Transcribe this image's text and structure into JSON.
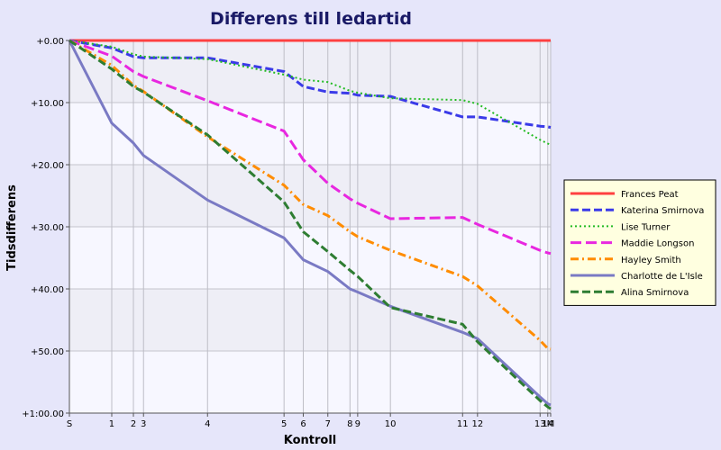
{
  "chart_data": {
    "type": "line",
    "title": "Differens till ledartid",
    "xlabel": "Kontroll",
    "ylabel": "Tidsdifferens",
    "ylim": [
      0,
      60
    ],
    "y_ticks": [
      {
        "value": 0,
        "label": "+0.00"
      },
      {
        "value": 10,
        "label": "+10.00"
      },
      {
        "value": 20,
        "label": "+20.00"
      },
      {
        "value": 30,
        "label": "+30.00"
      },
      {
        "value": 40,
        "label": "+40.00"
      },
      {
        "value": 50,
        "label": "+50.00"
      },
      {
        "value": 60,
        "label": "+1:00.00"
      }
    ],
    "x_range": [
      0,
      100
    ],
    "x_ticks": [
      {
        "label": "S",
        "x": 0
      },
      {
        "label": "1",
        "x": 8.8
      },
      {
        "label": "2",
        "x": 13.3
      },
      {
        "label": "3",
        "x": 15.4
      },
      {
        "label": "4",
        "x": 28.7
      },
      {
        "label": "5",
        "x": 44.6
      },
      {
        "label": "6",
        "x": 48.6
      },
      {
        "label": "7",
        "x": 53.7
      },
      {
        "label": "8",
        "x": 58.3
      },
      {
        "label": "9",
        "x": 59.9
      },
      {
        "label": "10",
        "x": 66.7
      },
      {
        "label": "11",
        "x": 81.7
      },
      {
        "label": "12",
        "x": 84.8
      },
      {
        "label": "13",
        "x": 97.8
      },
      {
        "label": "14",
        "x": 99.4
      },
      {
        "label": "M",
        "x": 100
      }
    ],
    "grid": true,
    "legend_position": "right",
    "series": [
      {
        "name": "Frances Peat",
        "color": "#ff4040",
        "style": "solid",
        "points": [
          [
            0,
            0
          ],
          [
            100,
            0
          ]
        ]
      },
      {
        "name": "Katerina Smirnova",
        "color": "#3a3ae8",
        "style": "dash",
        "points": [
          [
            0,
            0
          ],
          [
            8.8,
            1.2
          ],
          [
            13.3,
            2.6
          ],
          [
            15.4,
            2.8
          ],
          [
            28.7,
            2.8
          ],
          [
            44.6,
            5.0
          ],
          [
            48.6,
            7.4
          ],
          [
            53.7,
            8.3
          ],
          [
            58.3,
            8.5
          ],
          [
            59.9,
            8.8
          ],
          [
            66.7,
            9.0
          ],
          [
            81.7,
            12.3
          ],
          [
            84.8,
            12.3
          ],
          [
            97.8,
            13.8
          ],
          [
            99.4,
            13.9
          ],
          [
            100,
            14.0
          ]
        ]
      },
      {
        "name": "Lise Turner",
        "color": "#22bb22",
        "style": "dot",
        "points": [
          [
            0,
            0
          ],
          [
            8.8,
            1.0
          ],
          [
            13.3,
            2.2
          ],
          [
            15.4,
            2.6
          ],
          [
            28.7,
            3.0
          ],
          [
            44.6,
            5.5
          ],
          [
            48.6,
            6.3
          ],
          [
            53.7,
            6.7
          ],
          [
            58.3,
            8.1
          ],
          [
            59.9,
            8.4
          ],
          [
            66.7,
            9.3
          ],
          [
            81.7,
            9.6
          ],
          [
            84.8,
            10.2
          ],
          [
            97.8,
            16.0
          ],
          [
            99.4,
            16.6
          ],
          [
            100,
            16.8
          ]
        ]
      },
      {
        "name": "Maddie Longson",
        "color": "#e827e0",
        "style": "longdash",
        "points": [
          [
            0,
            0
          ],
          [
            8.8,
            2.5
          ],
          [
            13.3,
            5.0
          ],
          [
            15.4,
            5.8
          ],
          [
            28.7,
            9.7
          ],
          [
            44.6,
            14.6
          ],
          [
            48.6,
            19.2
          ],
          [
            53.7,
            23.0
          ],
          [
            58.3,
            25.5
          ],
          [
            59.9,
            26.2
          ],
          [
            66.7,
            28.7
          ],
          [
            81.7,
            28.5
          ],
          [
            84.8,
            29.6
          ],
          [
            97.8,
            33.8
          ],
          [
            99.4,
            34.2
          ],
          [
            100,
            34.3
          ]
        ]
      },
      {
        "name": "Hayley Smith",
        "color": "#ff8c00",
        "style": "dashdot",
        "points": [
          [
            0,
            0
          ],
          [
            8.8,
            4.0
          ],
          [
            13.3,
            7.2
          ],
          [
            15.4,
            8.2
          ],
          [
            28.7,
            15.5
          ],
          [
            44.6,
            23.3
          ],
          [
            48.6,
            26.4
          ],
          [
            53.7,
            28.2
          ],
          [
            58.3,
            30.8
          ],
          [
            59.9,
            31.6
          ],
          [
            66.7,
            33.8
          ],
          [
            81.7,
            38.0
          ],
          [
            84.8,
            39.5
          ],
          [
            97.8,
            48.3
          ],
          [
            99.4,
            49.6
          ],
          [
            100,
            49.7
          ]
        ]
      },
      {
        "name": "Charlotte de L'Isle",
        "color": "#7a7ac4",
        "style": "solid",
        "points": [
          [
            0,
            0
          ],
          [
            8.8,
            13.3
          ],
          [
            13.3,
            16.5
          ],
          [
            15.4,
            18.5
          ],
          [
            28.7,
            25.7
          ],
          [
            44.6,
            31.8
          ],
          [
            48.6,
            35.3
          ],
          [
            53.7,
            37.2
          ],
          [
            58.3,
            40.0
          ],
          [
            59.9,
            40.5
          ],
          [
            66.7,
            42.8
          ],
          [
            81.7,
            47.0
          ],
          [
            84.8,
            48.0
          ],
          [
            97.8,
            57.4
          ],
          [
            99.4,
            58.5
          ],
          [
            100,
            58.7
          ]
        ]
      },
      {
        "name": "Alina Smirnova",
        "color": "#2e7d32",
        "style": "dash",
        "points": [
          [
            0,
            0
          ],
          [
            8.8,
            4.6
          ],
          [
            13.3,
            7.4
          ],
          [
            15.4,
            8.3
          ],
          [
            28.7,
            15.2
          ],
          [
            44.6,
            26.0
          ],
          [
            48.6,
            30.8
          ],
          [
            53.7,
            34.0
          ],
          [
            58.3,
            37.0
          ],
          [
            59.9,
            38.0
          ],
          [
            66.7,
            43.0
          ],
          [
            81.7,
            45.7
          ],
          [
            84.8,
            48.5
          ],
          [
            97.8,
            58.0
          ],
          [
            99.4,
            59.0
          ],
          [
            100,
            59.3
          ]
        ]
      }
    ]
  }
}
